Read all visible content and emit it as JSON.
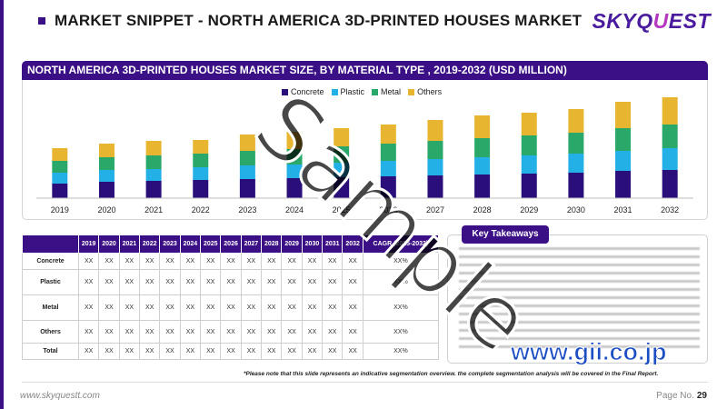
{
  "header": {
    "title": "MARKET SNIPPET - NORTH AMERICA 3D-PRINTED HOUSES MARKET",
    "logo_main": "SKYQ",
    "logo_accent": "U",
    "logo_tail": "EST"
  },
  "colors": {
    "primary": "#3b0f85",
    "concrete": "#2a0f7a",
    "plastic": "#22b0e6",
    "metal": "#2aa86a",
    "others": "#e8b530"
  },
  "chart_data": {
    "type": "bar",
    "stacked": true,
    "title": "NORTH AMERICA 3D-PRINTED HOUSES MARKET SIZE, BY MATERIAL TYPE , 2019-2032 (USD MILLION)",
    "categories": [
      "2019",
      "2020",
      "2021",
      "2022",
      "2023",
      "2024",
      "2025",
      "2026",
      "2027",
      "2028",
      "2029",
      "2030",
      "2031",
      "2032"
    ],
    "series": [
      {
        "name": "Concrete",
        "values": [
          16,
          18,
          19,
          20,
          21,
          22,
          23,
          24,
          25,
          26,
          27,
          28,
          30,
          31
        ]
      },
      {
        "name": "Plastic",
        "values": [
          12,
          13,
          13,
          14,
          15,
          15,
          16,
          17,
          18,
          19,
          20,
          21,
          22,
          24
        ]
      },
      {
        "name": "Metal",
        "values": [
          13,
          14,
          15,
          15,
          16,
          17,
          18,
          19,
          20,
          21,
          22,
          23,
          25,
          26
        ]
      },
      {
        "name": "Others",
        "values": [
          14,
          15,
          16,
          15,
          18,
          19,
          20,
          21,
          23,
          25,
          25,
          26,
          29,
          30
        ]
      }
    ],
    "ylim": [
      0,
      120
    ],
    "grid": false,
    "legend": "top-center"
  },
  "table": {
    "columns": [
      "2019",
      "2020",
      "2021",
      "2022",
      "2023",
      "2024",
      "2025",
      "2026",
      "2027",
      "2028",
      "2029",
      "2030",
      "2031",
      "2032",
      "CAGR (2025-2032)"
    ],
    "rows": [
      {
        "label": "Concrete",
        "cells": [
          "XX",
          "XX",
          "XX",
          "XX",
          "XX",
          "XX",
          "XX",
          "XX",
          "XX",
          "XX",
          "XX",
          "XX",
          "XX",
          "XX",
          "XX%"
        ]
      },
      {
        "label": "Plastic",
        "cells": [
          "XX",
          "XX",
          "XX",
          "XX",
          "XX",
          "XX",
          "XX",
          "XX",
          "XX",
          "XX",
          "XX",
          "XX",
          "XX",
          "XX",
          "XX%"
        ]
      },
      {
        "label": "Metal",
        "cells": [
          "XX",
          "XX",
          "XX",
          "XX",
          "XX",
          "XX",
          "XX",
          "XX",
          "XX",
          "XX",
          "XX",
          "XX",
          "XX",
          "XX",
          "XX%"
        ]
      },
      {
        "label": "Others",
        "cells": [
          "XX",
          "XX",
          "XX",
          "XX",
          "XX",
          "XX",
          "XX",
          "XX",
          "XX",
          "XX",
          "XX",
          "XX",
          "XX",
          "XX",
          "XX%"
        ]
      },
      {
        "label": "Total",
        "cells": [
          "XX",
          "XX",
          "XX",
          "XX",
          "XX",
          "XX",
          "XX",
          "XX",
          "XX",
          "XX",
          "XX",
          "XX",
          "XX",
          "XX",
          "XX%"
        ]
      }
    ]
  },
  "key_takeaways": {
    "tab_label": "Key Takeaways"
  },
  "footer": {
    "note": "*Please note that this slide represents an indicative segmentation overview. the complete segmentation analysis will be covered in the Final Report.",
    "website": "www.skyquestt.com",
    "page_label": "Page No.",
    "page_number": "29"
  },
  "watermark": "Sample",
  "overlay_brand": "www.gii.co.jp"
}
